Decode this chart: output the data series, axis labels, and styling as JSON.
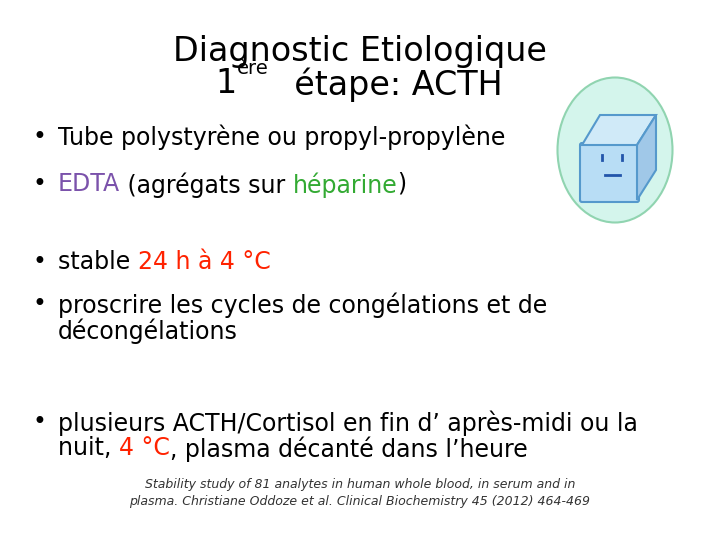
{
  "title_line1": "Diagnostic Etiologique",
  "title_superscript": "ère",
  "background_color": "#ffffff",
  "title_color": "#000000",
  "title_fontsize": 24,
  "super_fontsize": 14,
  "bullet_fontsize": 17,
  "footnote_fontsize": 9,
  "bullet_char": "•",
  "edta_color": "#7B52AB",
  "heparine_color": "#33AA33",
  "red_color": "#FF2200",
  "black_color": "#000000",
  "grey_color": "#444444",
  "footnote_color": "#333333",
  "footnote": "Stability study of 81 analytes in human whole blood, in serum and in\nplasma. Christiane Oddoze et al. Clinical Biochemistry 45 (2012) 464-469"
}
